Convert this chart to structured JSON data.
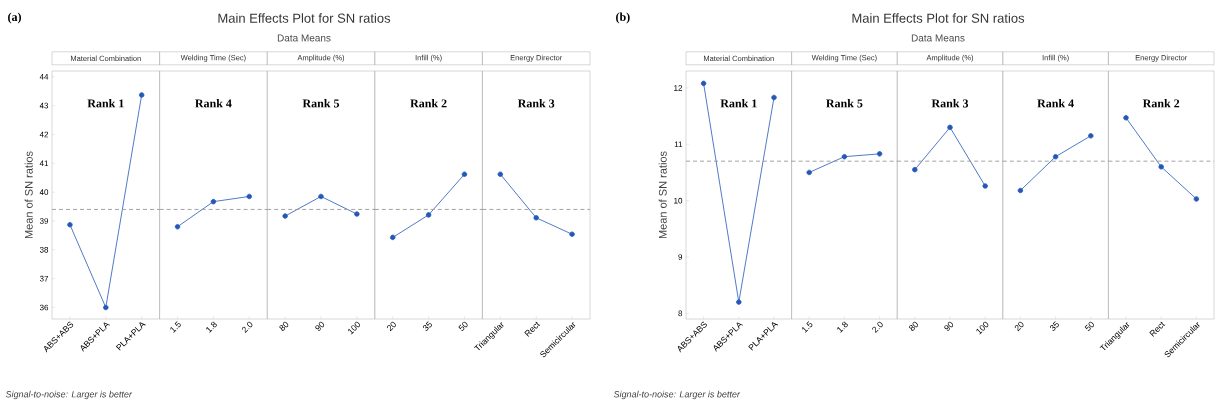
{
  "chart_data": [
    {
      "type": "line",
      "title": "Material Combination",
      "ylabel": "Mean of SN ratios",
      "categories": [
        "ABS+ABS",
        "ABS+PLA",
        "PLA+PLA"
      ],
      "values": [
        38.87,
        36.0,
        43.37
      ],
      "color": "#2458b8",
      "marker": "circle",
      "ylim": [
        35.6,
        44.2
      ],
      "yticks": [
        36,
        37,
        38,
        39,
        40,
        41,
        42,
        43,
        44
      ],
      "ref_lines": [
        {
          "axis": "y",
          "value": 39.4,
          "color": "#999999",
          "line_style": "dashed"
        }
      ],
      "annotations": [
        "Rank 1",
        "(a)",
        "Main Effects Plot for SN ratios",
        "Data Means",
        "Signal-to-noise: Larger is better"
      ]
    },
    {
      "type": "line",
      "title": "Welding Time (Sec)",
      "categories": [
        "1.5",
        "1.8",
        "2.0"
      ],
      "values": [
        38.8,
        39.67,
        39.85
      ],
      "color": "#2458b8",
      "marker": "circle",
      "ylim": [
        35.6,
        44.2
      ],
      "tick_labels": "x",
      "ref_lines": [
        {
          "axis": "y",
          "value": 39.4,
          "color": "#999999",
          "line_style": "dashed"
        }
      ],
      "annotations": [
        "Rank 4"
      ]
    },
    {
      "type": "line",
      "title": "Amplitude (%)",
      "categories": [
        "80",
        "90",
        "100"
      ],
      "values": [
        39.17,
        39.85,
        39.24
      ],
      "color": "#2458b8",
      "marker": "circle",
      "ylim": [
        35.6,
        44.2
      ],
      "tick_labels": "x",
      "ref_lines": [
        {
          "axis": "y",
          "value": 39.4,
          "color": "#999999",
          "line_style": "dashed"
        }
      ],
      "annotations": [
        "Rank 5"
      ]
    },
    {
      "type": "line",
      "title": "Infill (%)",
      "categories": [
        "20",
        "35",
        "50"
      ],
      "values": [
        38.43,
        39.21,
        40.62
      ],
      "color": "#2458b8",
      "marker": "circle",
      "ylim": [
        35.6,
        44.2
      ],
      "tick_labels": "x",
      "ref_lines": [
        {
          "axis": "y",
          "value": 39.4,
          "color": "#999999",
          "line_style": "dashed"
        }
      ],
      "annotations": [
        "Rank 2"
      ]
    },
    {
      "type": "line",
      "title": "Energy Director",
      "categories": [
        "Triangular",
        "Rect",
        "Semicircular"
      ],
      "values": [
        40.62,
        39.11,
        38.54
      ],
      "color": "#2458b8",
      "marker": "circle",
      "ylim": [
        35.6,
        44.2
      ],
      "tick_labels": "x",
      "ref_lines": [
        {
          "axis": "y",
          "value": 39.4,
          "color": "#999999",
          "line_style": "dashed"
        }
      ],
      "annotations": [
        "Rank 3"
      ]
    },
    {
      "type": "line",
      "title": "Material Combination",
      "ylabel": "Mean of SN ratios",
      "categories": [
        "ABS+ABS",
        "ABS+PLA",
        "PLA+PLA"
      ],
      "values": [
        12.08,
        8.2,
        11.83
      ],
      "color": "#2458b8",
      "marker": "circle",
      "ylim": [
        7.9,
        12.3
      ],
      "yticks": [
        8,
        9,
        10,
        11,
        12
      ],
      "ref_lines": [
        {
          "axis": "y",
          "value": 10.7,
          "color": "#999999",
          "line_style": "dashed"
        }
      ],
      "annotations": [
        "Rank 1",
        "(b)",
        "Main Effects Plot for SN ratios",
        "Data Means",
        "Signal-to-noise: Larger is better"
      ]
    },
    {
      "type": "line",
      "title": "Welding Time (Sec)",
      "categories": [
        "1.5",
        "1.8",
        "2.0"
      ],
      "values": [
        10.5,
        10.78,
        10.83
      ],
      "color": "#2458b8",
      "marker": "circle",
      "ylim": [
        7.9,
        12.3
      ],
      "tick_labels": "x",
      "ref_lines": [
        {
          "axis": "y",
          "value": 10.7,
          "color": "#999999",
          "line_style": "dashed"
        }
      ],
      "annotations": [
        "Rank 5"
      ]
    },
    {
      "type": "line",
      "title": "Amplitude (%)",
      "categories": [
        "80",
        "90",
        "100"
      ],
      "values": [
        10.55,
        11.3,
        10.26
      ],
      "color": "#2458b8",
      "marker": "circle",
      "ylim": [
        7.9,
        12.3
      ],
      "tick_labels": "x",
      "ref_lines": [
        {
          "axis": "y",
          "value": 10.7,
          "color": "#999999",
          "line_style": "dashed"
        }
      ],
      "annotations": [
        "Rank 3"
      ]
    },
    {
      "type": "line",
      "title": "Infill (%)",
      "categories": [
        "20",
        "35",
        "50"
      ],
      "values": [
        10.18,
        10.78,
        11.15
      ],
      "color": "#2458b8",
      "marker": "circle",
      "ylim": [
        7.9,
        12.3
      ],
      "tick_labels": "x",
      "ref_lines": [
        {
          "axis": "y",
          "value": 10.7,
          "color": "#999999",
          "line_style": "dashed"
        }
      ],
      "annotations": [
        "Rank 4"
      ]
    },
    {
      "type": "line",
      "title": "Energy Director",
      "categories": [
        "Triangular",
        "Rect",
        "Semicircular"
      ],
      "values": [
        11.47,
        10.6,
        10.03
      ],
      "color": "#2458b8",
      "marker": "circle",
      "ylim": [
        7.9,
        12.3
      ],
      "tick_labels": "x",
      "ref_lines": [
        {
          "axis": "y",
          "value": 10.7,
          "color": "#999999",
          "line_style": "dashed"
        }
      ],
      "annotations": [
        "Rank 2"
      ]
    }
  ]
}
